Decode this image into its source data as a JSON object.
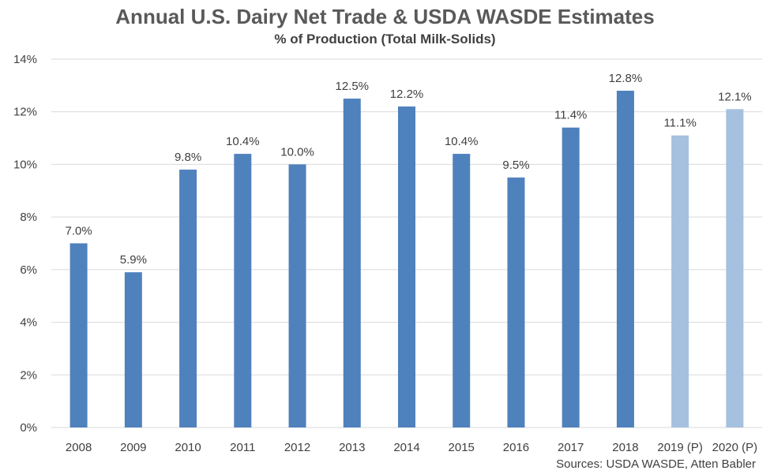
{
  "chart_data": {
    "type": "bar",
    "title": "Annual U.S. Dairy Net Trade & USDA WASDE Estimates",
    "subtitle": "% of Production  (Total Milk-Solids)",
    "categories": [
      "2008",
      "2009",
      "2010",
      "2011",
      "2012",
      "2013",
      "2014",
      "2015",
      "2016",
      "2017",
      "2018",
      "2019 (P)",
      "2020 (P)"
    ],
    "values": [
      7.0,
      5.9,
      9.8,
      10.4,
      10.0,
      12.5,
      12.2,
      10.4,
      9.5,
      11.4,
      12.8,
      11.1,
      12.1
    ],
    "data_labels": [
      "7.0%",
      "5.9%",
      "9.8%",
      "10.4%",
      "10.0%",
      "12.5%",
      "12.2%",
      "10.4%",
      "9.5%",
      "11.4%",
      "12.8%",
      "11.1%",
      "12.1%"
    ],
    "projected": [
      false,
      false,
      false,
      false,
      false,
      false,
      false,
      false,
      false,
      false,
      false,
      true,
      true
    ],
    "ylim": [
      0,
      14
    ],
    "yticks": [
      0,
      2,
      4,
      6,
      8,
      10,
      12,
      14
    ],
    "ytick_labels": [
      "0%",
      "2%",
      "4%",
      "6%",
      "8%",
      "10%",
      "12%",
      "14%"
    ],
    "xlabel": "",
    "ylabel": "",
    "grid": true,
    "colors": {
      "actual": "#4f81bd",
      "projected": "#a6c0df",
      "grid": "#d9d9d9",
      "text": "#404040"
    }
  },
  "source_note": "Sources: USDA WASDE, Atten Babler"
}
